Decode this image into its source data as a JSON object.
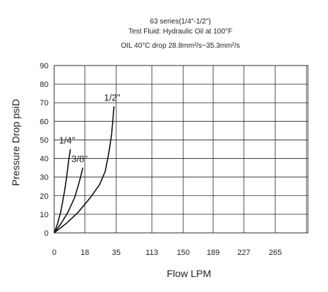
{
  "chart_data": {
    "type": "line",
    "title_lines": [
      "63 series(1/4\"-1/2\")",
      "Test Fluid: Hydraulic Oil at 100°F",
      "OIL 40°C drop 28.8mm²/s~35.3mm²/s"
    ],
    "xlabel": "Flow LPM",
    "ylabel": "Pressure Drop psiD",
    "x_tick_labels": [
      "0",
      "18",
      "35",
      "113",
      "150",
      "189",
      "227",
      "265"
    ],
    "y_ticks": [
      0,
      10,
      20,
      30,
      40,
      50,
      60,
      70,
      80,
      90
    ],
    "ylim": [
      0,
      90
    ],
    "grid": true,
    "series": [
      {
        "name": "1/4\"",
        "x": [
          0,
          2,
          4,
          6,
          7,
          8,
          8.5,
          9.5
        ],
        "y": [
          0,
          5,
          12,
          22,
          28,
          35,
          39,
          45
        ]
      },
      {
        "name": "3/8\"",
        "x": [
          0,
          4,
          8,
          12,
          14,
          15.5,
          16.8
        ],
        "y": [
          0,
          5,
          11,
          19,
          25,
          30,
          35
        ]
      },
      {
        "name": "1/2\"",
        "x": [
          0,
          7,
          14,
          21,
          26,
          29,
          31,
          32.5,
          33.8
        ],
        "y": [
          0,
          5,
          11,
          19,
          26,
          33,
          43,
          53,
          68
        ]
      }
    ]
  }
}
